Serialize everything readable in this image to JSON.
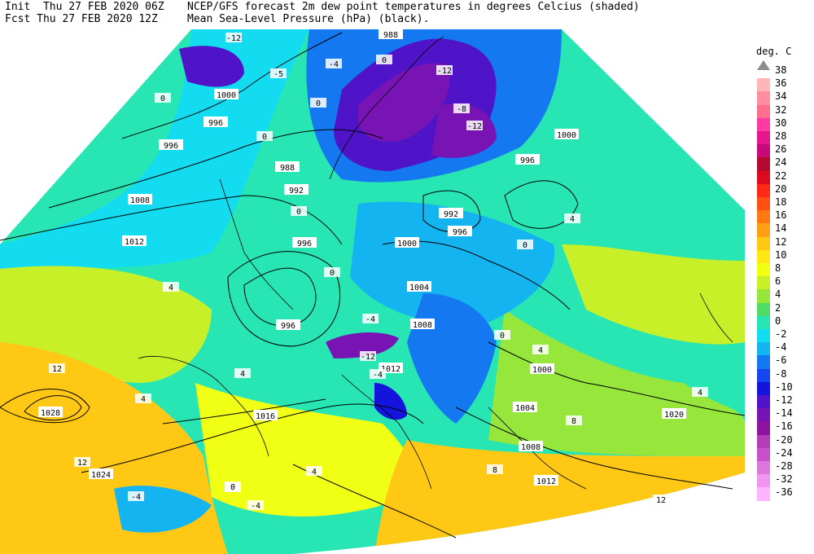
{
  "header": {
    "init": "Init  Thu 27 FEB 2020 06Z",
    "fcst": "Fcst Thu 27 FEB 2020 12Z",
    "title_line1": "NCEP/GFS forecast 2m dew point temperatures in degrees Celcius (shaded)",
    "title_line2": "Mean Sea-Level Pressure (hPa) (black)."
  },
  "legend": {
    "title": "deg. C",
    "items": [
      {
        "label": "38",
        "color": "#8c8c8c"
      },
      {
        "label": "36",
        "color": "#ffb6b6"
      },
      {
        "label": "34",
        "color": "#ff8fa0"
      },
      {
        "label": "32",
        "color": "#ff6e8c"
      },
      {
        "label": "30",
        "color": "#ff3aa0"
      },
      {
        "label": "28",
        "color": "#e6178c"
      },
      {
        "label": "26",
        "color": "#c80a78"
      },
      {
        "label": "24",
        "color": "#b40a32"
      },
      {
        "label": "22",
        "color": "#dc0a1e"
      },
      {
        "label": "20",
        "color": "#ff2814"
      },
      {
        "label": "18",
        "color": "#ff5014"
      },
      {
        "label": "16",
        "color": "#ff7814"
      },
      {
        "label": "14",
        "color": "#ffa014"
      },
      {
        "label": "12",
        "color": "#ffc814"
      },
      {
        "label": "10",
        "color": "#ffe614"
      },
      {
        "label": "8",
        "color": "#f0ff14"
      },
      {
        "label": "6",
        "color": "#c8f028"
      },
      {
        "label": "4",
        "color": "#96e63c"
      },
      {
        "label": "2",
        "color": "#50dc64"
      },
      {
        "label": "0",
        "color": "#28e6b4"
      },
      {
        "label": "-2",
        "color": "#14dcf0"
      },
      {
        "label": "-4",
        "color": "#14b4f0"
      },
      {
        "label": "-6",
        "color": "#1478f0"
      },
      {
        "label": "-8",
        "color": "#1446f0"
      },
      {
        "label": "-10",
        "color": "#1414dc"
      },
      {
        "label": "-12",
        "color": "#5014c8"
      },
      {
        "label": "-14",
        "color": "#7814b4"
      },
      {
        "label": "-16",
        "color": "#8c14a0"
      },
      {
        "label": "-20",
        "color": "#b43cb4"
      },
      {
        "label": "-24",
        "color": "#c850c8"
      },
      {
        "label": "-28",
        "color": "#dc78dc"
      },
      {
        "label": "-32",
        "color": "#f096f0"
      },
      {
        "label": "-36",
        "color": "#ffb4ff"
      }
    ]
  },
  "map": {
    "pressure_labels": [
      "988",
      "996",
      "1000",
      "996",
      "988",
      "992",
      "996",
      "1008",
      "1012",
      "996",
      "1000",
      "1004",
      "996",
      "1008",
      "1012",
      "1028",
      "1016",
      "1024",
      "1000",
      "1004",
      "1008",
      "1012",
      "1020",
      "1000",
      "992",
      "996"
    ],
    "dewpoint_labels": [
      "-12",
      "-4",
      "-5",
      "0",
      "0",
      "0",
      "0",
      "0",
      "0",
      "4",
      "4",
      "12",
      "12",
      "4",
      "0",
      "0",
      "-4",
      "-12",
      "-4",
      "0",
      "8",
      "4",
      "-4",
      "-12",
      "-8",
      "-12",
      "4",
      "4",
      "12",
      "-4",
      "0",
      "4",
      "8"
    ]
  }
}
